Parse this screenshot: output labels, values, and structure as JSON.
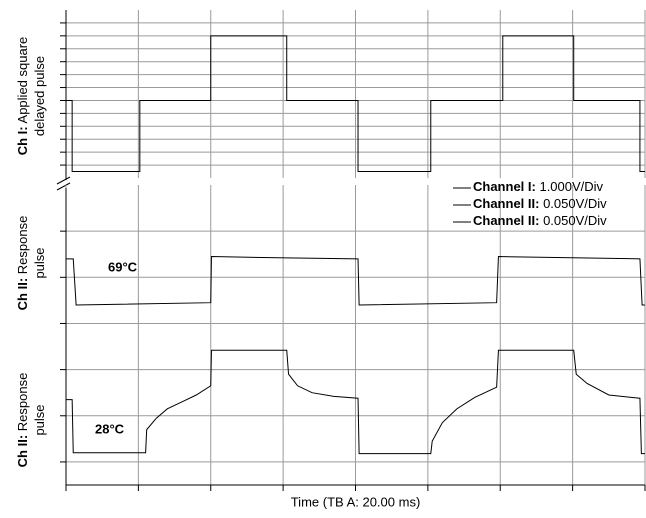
{
  "chart_data": [
    {
      "type": "line",
      "xlim": [
        0,
        160
      ],
      "xticks": [
        0,
        20,
        40,
        60,
        80,
        100,
        120,
        140,
        160
      ],
      "ylim": [
        0,
        13
      ],
      "yticks": [
        1,
        2,
        3,
        4,
        5,
        6,
        7,
        8,
        9,
        10,
        11,
        12
      ],
      "grid": true,
      "ylabel_prefix": "Ch I:",
      "ylabel_lines": [
        "Applied square",
        "delayed pulse"
      ],
      "series": [
        {
          "color": "#000000",
          "x": [
            0,
            1.7,
            1.7,
            20.4,
            20.4,
            40,
            40,
            61,
            61,
            80.7,
            80.7,
            100.8,
            100.8,
            120.7,
            120.7,
            140.3,
            140.3,
            158.6,
            158.6,
            160
          ],
          "values": [
            6,
            6,
            0.5,
            0.5,
            6,
            6,
            11,
            11,
            6,
            6,
            0.5,
            0.5,
            6,
            6,
            11,
            11,
            6,
            6,
            0.5,
            0.5
          ]
        }
      ]
    },
    {
      "type": "line",
      "xlim": [
        0,
        160
      ],
      "xticks": [
        0,
        20,
        40,
        60,
        80,
        100,
        120,
        140,
        160
      ],
      "ylim": [
        0,
        6.5
      ],
      "yticks": [
        0.5,
        1.5,
        2.5,
        3.5,
        4.5,
        5.5
      ],
      "grid": true,
      "xlabel": "Time (TB A: 20.00 ms)",
      "legend": [
        {
          "bold": "Channel I:",
          "text": "1.000V/Div"
        },
        {
          "bold": "Channel II:",
          "text": "0.050V/Div"
        },
        {
          "bold": "Channel II:",
          "text": "0.050V/Div"
        }
      ],
      "series": [
        {
          "label_prefix": "Ch II:",
          "label_lines": [
            "Response",
            "pulse"
          ],
          "annotation": "69°C",
          "color": "#000000",
          "x": [
            0,
            2,
            2.8,
            40,
            40.2,
            61,
            80.7,
            81,
            119,
            119.5,
            158.6,
            159.2,
            160
          ],
          "values": [
            4.9,
            4.9,
            3.9,
            3.95,
            4.95,
            4.92,
            4.9,
            3.9,
            3.95,
            4.95,
            4.9,
            3.9,
            3.9
          ]
        },
        {
          "label_prefix": "Ch II:",
          "label_lines": [
            "Response",
            "pulse"
          ],
          "annotation": "28°C",
          "color": "#000000",
          "x": [
            0,
            1.7,
            2,
            22,
            22.3,
            25,
            28,
            32,
            36,
            40,
            40.2,
            61,
            61.5,
            64,
            68,
            74,
            80.7,
            81,
            100.8,
            101.2,
            104,
            108,
            113,
            119,
            119.5,
            140.3,
            141,
            144,
            150,
            158.6,
            159,
            160
          ],
          "values": [
            1.85,
            1.85,
            0.7,
            0.7,
            1.2,
            1.45,
            1.65,
            1.8,
            1.95,
            2.15,
            2.92,
            2.92,
            2.4,
            2.15,
            2.0,
            1.92,
            1.88,
            0.68,
            0.68,
            0.95,
            1.35,
            1.65,
            1.9,
            2.12,
            2.92,
            2.92,
            2.4,
            2.2,
            1.95,
            1.88,
            0.68,
            0.68
          ]
        }
      ]
    }
  ]
}
